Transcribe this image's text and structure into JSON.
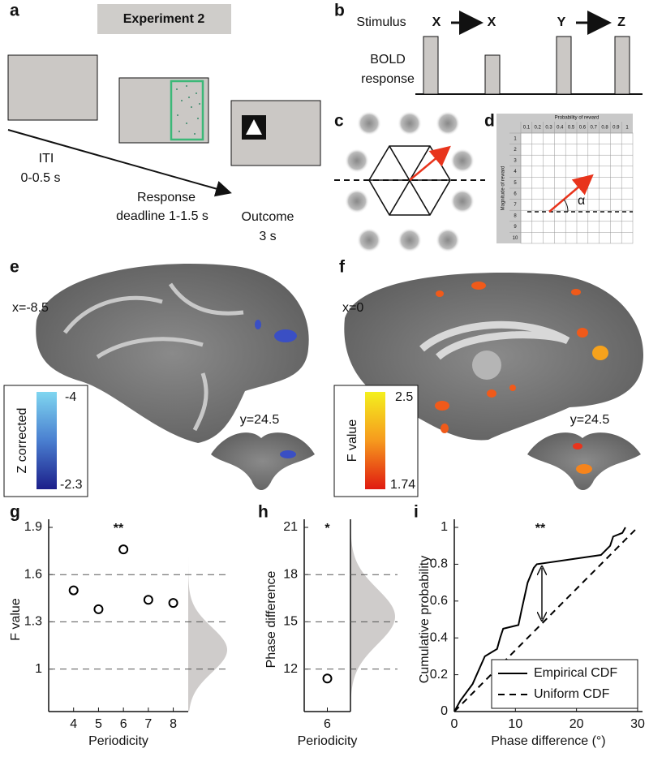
{
  "panel_labels": [
    "a",
    "b",
    "c",
    "d",
    "e",
    "f",
    "g",
    "h",
    "i"
  ],
  "panel_a": {
    "title": "Experiment 2",
    "iti": [
      "ITI",
      "0-0.5 s"
    ],
    "response": [
      "Response",
      "deadline 1-1.5 s"
    ],
    "outcome": [
      "Outcome",
      "3 s"
    ]
  },
  "panel_b": {
    "stimulus_label": "Stimulus",
    "bold_label": [
      "BOLD",
      "response"
    ],
    "stimuli": [
      "X",
      "X",
      "Y",
      "Z"
    ]
  },
  "panel_d": {
    "column_title": "Probability of reward",
    "columns": [
      "0.1",
      "0.2",
      "0.3",
      "0.4",
      "0.5",
      "0.6",
      "0.7",
      "0.8",
      "0.9",
      "1"
    ],
    "row_title": "Magnitude of reward",
    "rows": [
      "1",
      "2",
      "3",
      "4",
      "5",
      "6",
      "7",
      "8",
      "9",
      "10"
    ],
    "angle": "α"
  },
  "panel_e": {
    "slice_x": "x=-8.5",
    "slice_y": "y=24.5",
    "colorbar_title": "Z corrected",
    "colorbar_top": "-4",
    "colorbar_bottom": "-2.3"
  },
  "panel_f": {
    "slice_x": "x=0",
    "slice_y": "y=24.5",
    "colorbar_title": "F value",
    "colorbar_top": "2.5",
    "colorbar_bottom": "1.74"
  },
  "chart_data": [
    {
      "type": "scatter",
      "annotation": "**",
      "xlabel": "Periodicity",
      "ylabel": "F value",
      "x": [
        4,
        5,
        6,
        7,
        8
      ],
      "values": [
        1.5,
        1.38,
        1.76,
        1.44,
        1.42
      ],
      "color": "#000000",
      "xlim": [
        3,
        8.6
      ],
      "ylim": [
        0.73,
        1.9
      ],
      "xticks": [
        4,
        5,
        6,
        7,
        8
      ],
      "yticks": [
        1,
        1.3,
        1.6,
        1.9
      ],
      "grid": true
    },
    {
      "type": "scatter",
      "annotation": "*",
      "xlabel": "Periodicity",
      "ylabel": "Phase difference",
      "x": [
        6
      ],
      "values": [
        11.4
      ],
      "color": "#000000",
      "xlim": [
        5.5,
        6.5
      ],
      "ylim": [
        9.3,
        21
      ],
      "xticks": [
        6
      ],
      "yticks": [
        12,
        15,
        18,
        21
      ],
      "grid": true
    },
    {
      "type": "line",
      "annotation": "**",
      "xlabel": "Phase difference (°)",
      "ylabel": "Cumulative probability",
      "series": [
        {
          "name": "Empirical CDF",
          "color": "#000000",
          "line_style": "solid",
          "x": [
            0,
            1,
            3,
            5,
            6,
            7,
            7.5,
            8,
            10.5,
            11,
            12,
            13,
            13.5,
            24,
            25.5,
            26,
            27.5,
            28
          ],
          "values": [
            0,
            0.06,
            0.15,
            0.3,
            0.32,
            0.34,
            0.4,
            0.45,
            0.47,
            0.55,
            0.7,
            0.78,
            0.8,
            0.85,
            0.9,
            0.95,
            0.97,
            1
          ]
        },
        {
          "name": "Uniform CDF",
          "color": "#000000",
          "line_style": "dashed",
          "x": [
            0,
            30
          ],
          "values": [
            0,
            1
          ]
        }
      ],
      "xlim": [
        0,
        30.8
      ],
      "ylim": [
        0,
        1
      ],
      "xticks": [
        0,
        10,
        20,
        30
      ],
      "yticks": [
        0,
        0.2,
        0.4,
        0.6,
        0.8,
        1
      ],
      "grid": false,
      "legend": "lower right"
    }
  ]
}
